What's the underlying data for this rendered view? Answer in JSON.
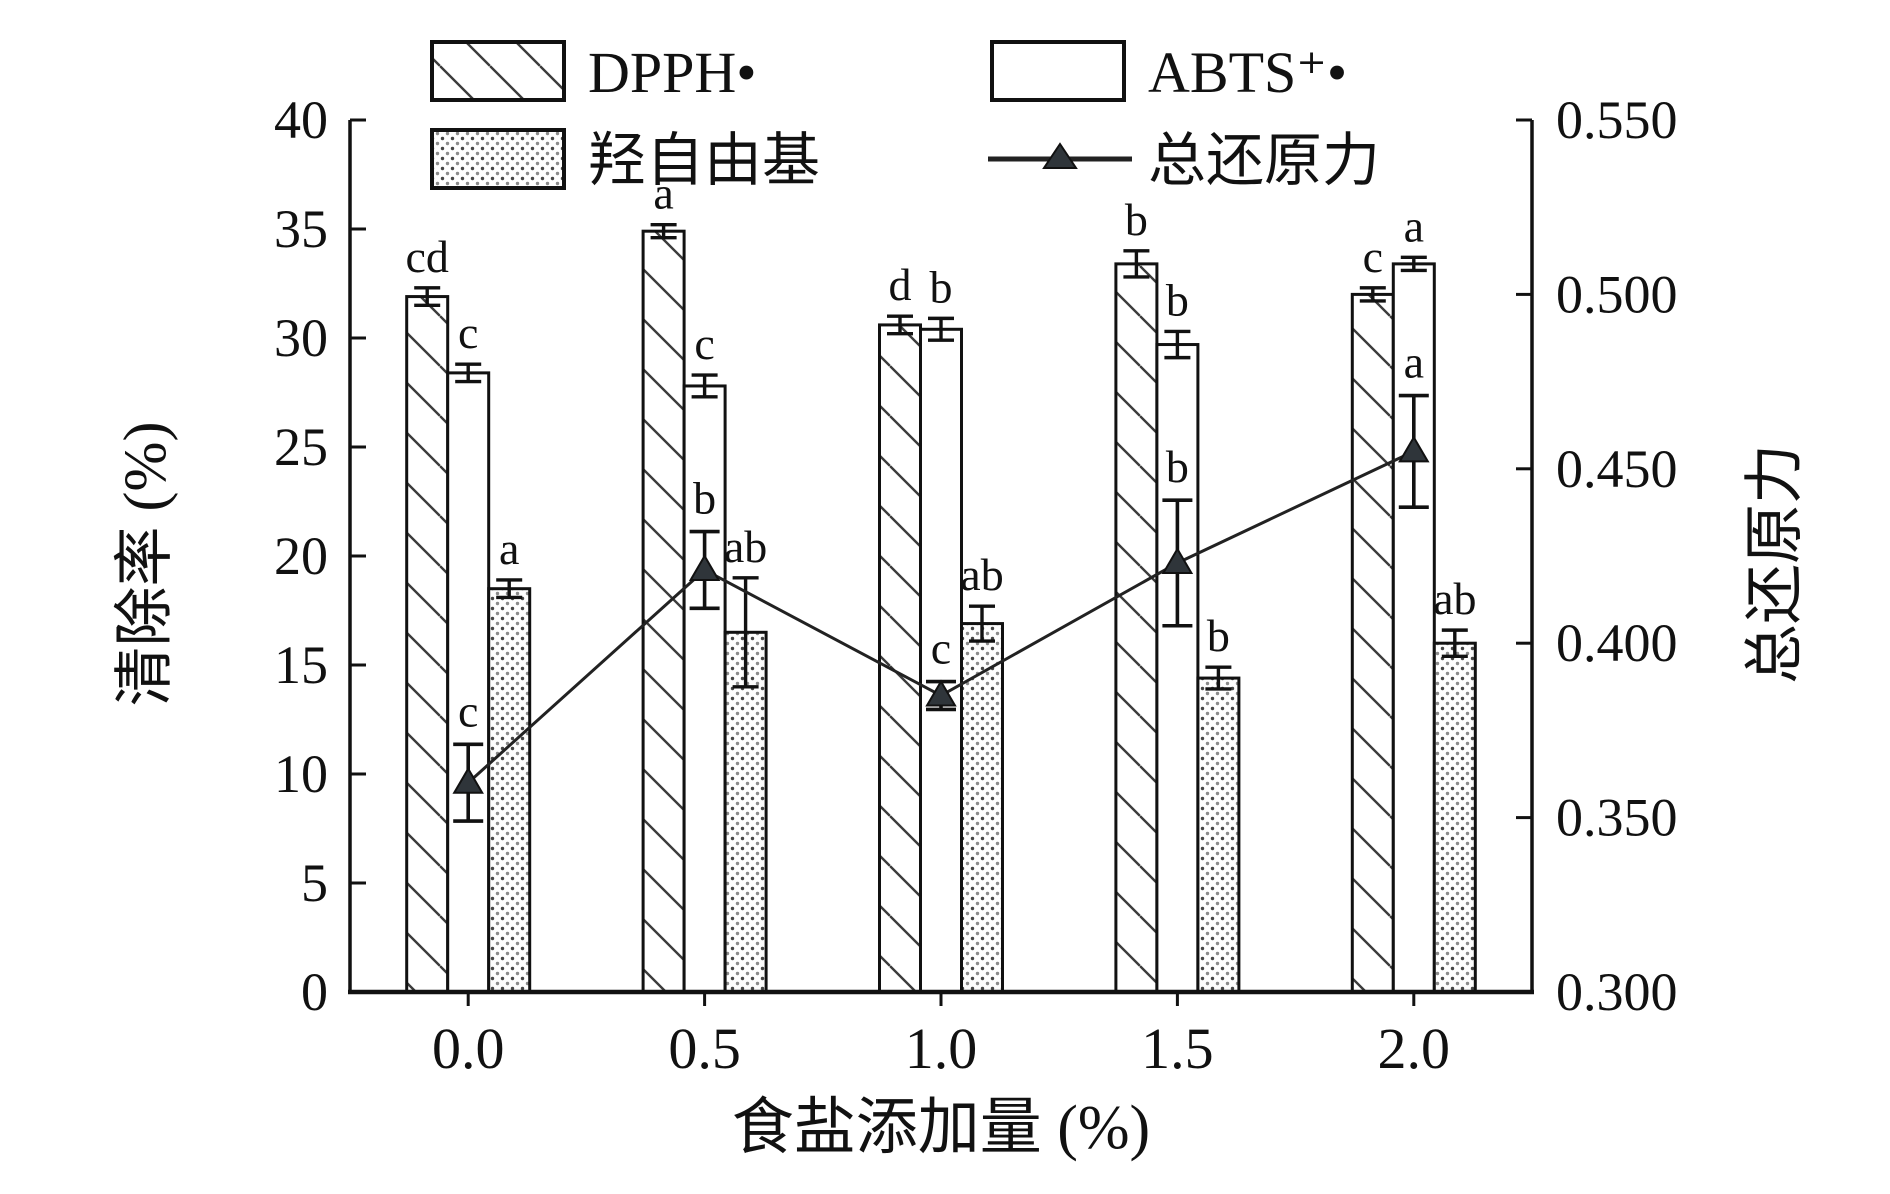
{
  "figure": {
    "background": "#ffffff",
    "foreground": "#111111"
  },
  "chart_data": {
    "type": "bar",
    "subtype": "grouped-bars-with-line-overlay",
    "title": "",
    "x_axis": {
      "label": "食盐添加量 (%)",
      "categories": [
        "0.0",
        "0.5",
        "1.0",
        "1.5",
        "2.0"
      ]
    },
    "left_axis": {
      "label": "清除率 (%)",
      "min": 0,
      "max": 40,
      "tick_step": 5,
      "ticks": [
        "0",
        "5",
        "10",
        "15",
        "20",
        "25",
        "30",
        "35",
        "40"
      ]
    },
    "right_axis": {
      "label": "总还原力",
      "min": 0.3,
      "max": 0.55,
      "tick_step": 0.05,
      "ticks": [
        "0.300",
        "0.350",
        "0.400",
        "0.450",
        "0.500",
        "0.550"
      ]
    },
    "grid": "off",
    "legend_position": "top",
    "legend": {
      "items": [
        "DPPH•",
        "ABTS⁺•",
        "羟自由基",
        "总还原力"
      ]
    },
    "bar_series": [
      {
        "name": "DPPH•",
        "axis": "left",
        "pattern": "diagonal-hatch",
        "values": [
          31.9,
          34.9,
          30.6,
          33.4,
          32.0
        ],
        "errors": [
          0.4,
          0.3,
          0.4,
          0.6,
          0.3
        ],
        "letters": [
          "cd",
          "a",
          "d",
          "b",
          "c"
        ]
      },
      {
        "name": "ABTS⁺•",
        "axis": "left",
        "pattern": "plain-white",
        "values": [
          28.4,
          27.8,
          30.4,
          29.7,
          33.4
        ],
        "errors": [
          0.4,
          0.5,
          0.5,
          0.6,
          0.3
        ],
        "letters": [
          "c",
          "c",
          "b",
          "b",
          "a"
        ]
      },
      {
        "name": "羟自由基",
        "axis": "left",
        "pattern": "dots",
        "values": [
          18.5,
          16.5,
          16.9,
          14.4,
          16.0
        ],
        "errors": [
          0.4,
          2.5,
          0.8,
          0.5,
          0.6
        ],
        "letters": [
          "a",
          "ab",
          "ab",
          "b",
          "ab"
        ]
      }
    ],
    "line_series": [
      {
        "name": "总还原力",
        "axis": "right",
        "marker": "filled-triangle",
        "values": [
          0.36,
          0.421,
          0.385,
          0.423,
          0.455
        ],
        "errors": [
          0.011,
          0.011,
          0.004,
          0.018,
          0.016
        ],
        "letters": [
          "c",
          "b",
          "c",
          "b",
          "a"
        ]
      }
    ],
    "colors": {
      "axis": "#111111",
      "bar_border": "#111111",
      "hatch_dark": "#3c3c3c",
      "hatch_light": "#b0b0b0",
      "dot_dark": "#454545",
      "dot_light": "#8a8a8a",
      "line": "#222222",
      "marker_fill": "#2f353a",
      "background": "#ffffff"
    }
  }
}
